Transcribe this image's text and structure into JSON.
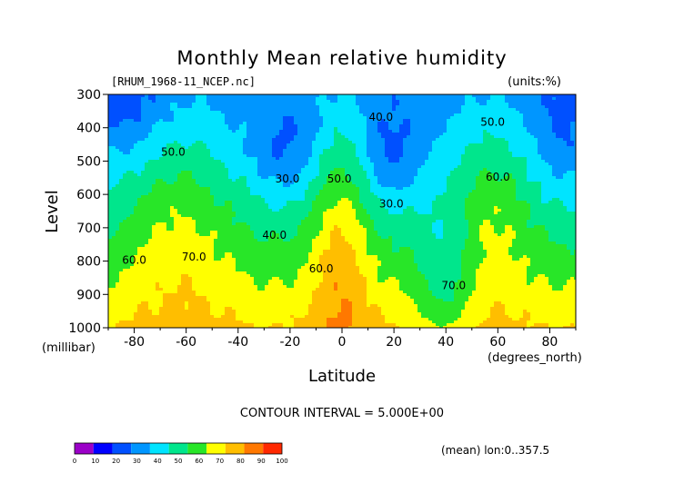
{
  "chart_data": {
    "type": "contour",
    "title": "Monthly Mean relative humidity",
    "file_label": "[RHUM_1968-11_NCEP.nc]",
    "units_label": "(units:%)",
    "xlabel": "Latitude",
    "x_unit_label": "(degrees_north)",
    "ylabel": "Level",
    "y_unit_label": "(millibar)",
    "xlim": [
      -90,
      90
    ],
    "ylim": [
      1000,
      300
    ],
    "x_ticks": [
      -80,
      -60,
      -40,
      -20,
      0,
      20,
      40,
      60,
      80
    ],
    "y_ticks": [
      300,
      400,
      500,
      600,
      700,
      800,
      900,
      1000
    ],
    "contour_interval_text": "CONTOUR INTERVAL = 5.000E+00",
    "mean_note": "(mean) lon:0..357.5",
    "contour_labels": [
      {
        "text": "40.0",
        "x": 15,
        "y": 365
      },
      {
        "text": "50.0",
        "x": 58,
        "y": 380
      },
      {
        "text": "50.0",
        "x": -65,
        "y": 470
      },
      {
        "text": "30.0",
        "x": -21,
        "y": 550
      },
      {
        "text": "50.0",
        "x": -1,
        "y": 550
      },
      {
        "text": "60.0",
        "x": 60,
        "y": 545
      },
      {
        "text": "30.0",
        "x": 19,
        "y": 625
      },
      {
        "text": "40.0",
        "x": -26,
        "y": 720
      },
      {
        "text": "70.0",
        "x": -57,
        "y": 785
      },
      {
        "text": "60.0",
        "x": -80,
        "y": 795
      },
      {
        "text": "60.0",
        "x": -8,
        "y": 820
      },
      {
        "text": "70.0",
        "x": 43,
        "y": 870
      }
    ],
    "colorbar": {
      "labels": [
        "0",
        "10",
        "20",
        "30",
        "40",
        "50",
        "60",
        "70",
        "80",
        "90",
        "100"
      ],
      "colors": [
        "#9b00c8",
        "#0000ff",
        "#0050ff",
        "#0096ff",
        "#00e4ff",
        "#00e68c",
        "#28e628",
        "#ffff00",
        "#ffbe00",
        "#ff7800",
        "#ff2800"
      ]
    }
  }
}
